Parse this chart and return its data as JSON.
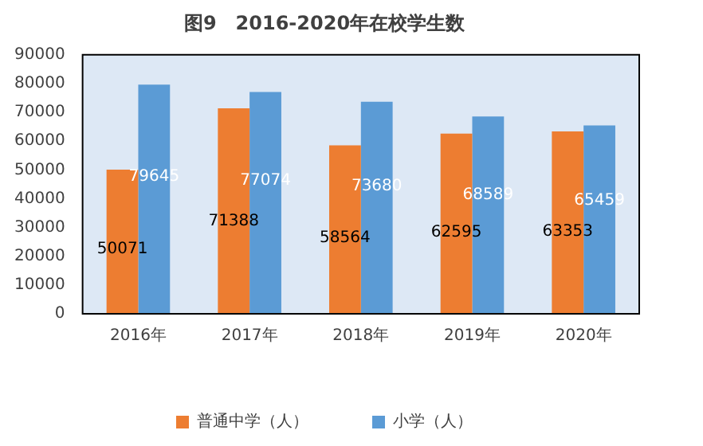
{
  "chart_data": {
    "type": "bar",
    "title": "图9　2016-2020年在校学生数",
    "categories": [
      "2016年",
      "2017年",
      "2018年",
      "2019年",
      "2020年"
    ],
    "series": [
      {
        "name": "普通中学（人）",
        "color": "#ed7d31",
        "values": [
          50071,
          71388,
          58564,
          62595,
          63353
        ]
      },
      {
        "name": "小学（人）",
        "color": "#5b9bd5",
        "values": [
          79645,
          77074,
          73680,
          68589,
          65459
        ]
      }
    ],
    "ylim": [
      0,
      90000
    ],
    "yticks": [
      0,
      10000,
      20000,
      30000,
      40000,
      50000,
      60000,
      70000,
      80000,
      90000
    ],
    "grid": false,
    "legend": "bottom",
    "data_labels": true
  }
}
